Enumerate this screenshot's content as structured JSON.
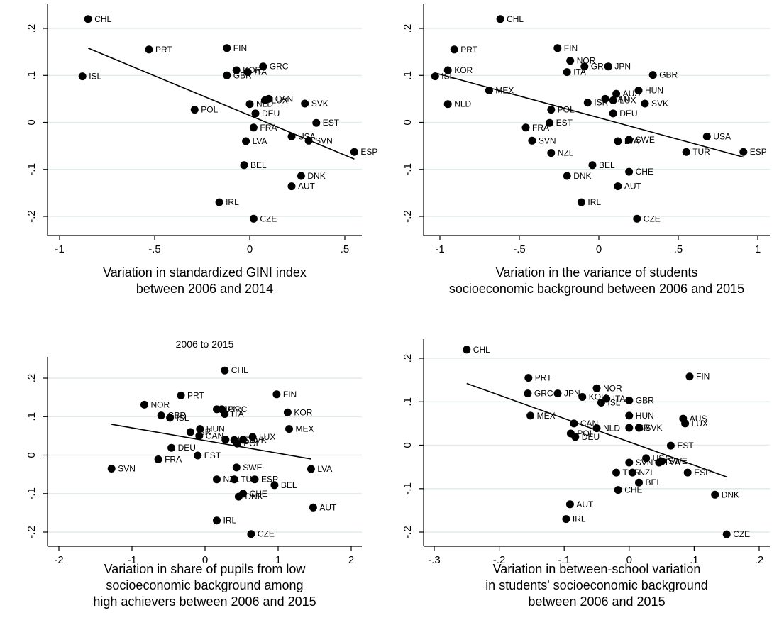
{
  "chart_data": [
    {
      "type": "scatter",
      "title": "",
      "xlabel": [
        "Variation in standardized GINI index",
        "between 2006 and 2014"
      ],
      "ylabel": "",
      "xlim": [
        -1.05,
        0.6
      ],
      "ylim": [
        -0.22,
        0.25
      ],
      "xticks": [
        -1,
        -0.5,
        0,
        0.5
      ],
      "xtick_labels": [
        "-1",
        "-.5",
        "0",
        ".5"
      ],
      "yticks": [
        -0.2,
        -0.1,
        0,
        0.1,
        0.2
      ],
      "ytick_labels": [
        "-.2",
        "-.1",
        "0",
        ".1",
        ".2"
      ],
      "grid": true,
      "fit_line": [
        [
          -0.85,
          0.158
        ],
        [
          0.55,
          -0.078
        ]
      ],
      "points": [
        {
          "label": "CHL",
          "x": -0.85,
          "y": 0.22
        },
        {
          "label": "PRT",
          "x": -0.53,
          "y": 0.155
        },
        {
          "label": "FIN",
          "x": -0.12,
          "y": 0.158
        },
        {
          "label": "ISL",
          "x": -0.88,
          "y": 0.098
        },
        {
          "label": "KOR",
          "x": -0.07,
          "y": 0.111
        },
        {
          "label": "GRC",
          "x": 0.07,
          "y": 0.119
        },
        {
          "label": "GBR",
          "x": -0.12,
          "y": 0.1
        },
        {
          "label": "ITA",
          "x": -0.01,
          "y": 0.107
        },
        {
          "label": "CAN",
          "x": 0.1,
          "y": 0.05
        },
        {
          "label": "LUX",
          "x": 0.08,
          "y": 0.047
        },
        {
          "label": "NLD",
          "x": 0.0,
          "y": 0.039
        },
        {
          "label": "SVK",
          "x": 0.29,
          "y": 0.04
        },
        {
          "label": "POL",
          "x": -0.29,
          "y": 0.027
        },
        {
          "label": "DEU",
          "x": 0.03,
          "y": 0.019
        },
        {
          "label": "EST",
          "x": 0.35,
          "y": -0.001
        },
        {
          "label": "FRA",
          "x": 0.02,
          "y": -0.011
        },
        {
          "label": "USA",
          "x": 0.22,
          "y": -0.03
        },
        {
          "label": "SVN",
          "x": 0.31,
          "y": -0.039
        },
        {
          "label": "LVA",
          "x": -0.02,
          "y": -0.04
        },
        {
          "label": "ESP",
          "x": 0.55,
          "y": -0.063
        },
        {
          "label": "BEL",
          "x": -0.03,
          "y": -0.091
        },
        {
          "label": "DNK",
          "x": 0.27,
          "y": -0.114
        },
        {
          "label": "AUT",
          "x": 0.22,
          "y": -0.136
        },
        {
          "label": "IRL",
          "x": -0.16,
          "y": -0.17
        },
        {
          "label": "CZE",
          "x": 0.02,
          "y": -0.205
        }
      ]
    },
    {
      "type": "scatter",
      "title": "",
      "xlabel": [
        "Variation in the variance of students",
        "socioeconomic background between 2006 and 2015"
      ],
      "ylabel": "",
      "xlim": [
        -1.08,
        1.05
      ],
      "ylim": [
        -0.22,
        0.25
      ],
      "xticks": [
        -1,
        -0.5,
        0,
        0.5,
        1
      ],
      "xtick_labels": [
        "-1",
        "-.5",
        "0",
        ".5",
        "1"
      ],
      "yticks": [
        -0.2,
        -0.1,
        0,
        0.1,
        0.2
      ],
      "ytick_labels": [
        "-.2",
        "-.1",
        "0",
        ".1",
        ".2"
      ],
      "grid": true,
      "fit_line": [
        [
          -1.03,
          0.105
        ],
        [
          0.91,
          -0.074
        ]
      ],
      "points": [
        {
          "label": "CHL",
          "x": -0.62,
          "y": 0.22
        },
        {
          "label": "PRT",
          "x": -0.91,
          "y": 0.155
        },
        {
          "label": "FIN",
          "x": -0.26,
          "y": 0.158
        },
        {
          "label": "NOR",
          "x": -0.18,
          "y": 0.131
        },
        {
          "label": "KOR",
          "x": -0.95,
          "y": 0.111
        },
        {
          "label": "GRC",
          "x": -0.09,
          "y": 0.119
        },
        {
          "label": "JPN",
          "x": 0.06,
          "y": 0.119
        },
        {
          "label": "ISL",
          "x": -1.03,
          "y": 0.098
        },
        {
          "label": "ITA",
          "x": -0.2,
          "y": 0.107
        },
        {
          "label": "GBR",
          "x": 0.34,
          "y": 0.101
        },
        {
          "label": "MEX",
          "x": -0.69,
          "y": 0.068
        },
        {
          "label": "HUN",
          "x": 0.25,
          "y": 0.068
        },
        {
          "label": "AUS",
          "x": 0.11,
          "y": 0.061
        },
        {
          "label": "CAN",
          "x": 0.04,
          "y": 0.05
        },
        {
          "label": "LUX",
          "x": 0.09,
          "y": 0.047
        },
        {
          "label": "ISR",
          "x": -0.07,
          "y": 0.042
        },
        {
          "label": "NLD",
          "x": -0.95,
          "y": 0.039
        },
        {
          "label": "SVK",
          "x": 0.29,
          "y": 0.04
        },
        {
          "label": "POL",
          "x": -0.3,
          "y": 0.027
        },
        {
          "label": "DEU",
          "x": 0.09,
          "y": 0.019
        },
        {
          "label": "EST",
          "x": -0.31,
          "y": -0.001
        },
        {
          "label": "FRA",
          "x": -0.46,
          "y": -0.011
        },
        {
          "label": "USA",
          "x": 0.68,
          "y": -0.03
        },
        {
          "label": "SVN",
          "x": -0.42,
          "y": -0.039
        },
        {
          "label": "SWE",
          "x": 0.19,
          "y": -0.037
        },
        {
          "label": "LVA",
          "x": 0.12,
          "y": -0.04
        },
        {
          "label": "TUR",
          "x": 0.55,
          "y": -0.063
        },
        {
          "label": "ESP",
          "x": 0.91,
          "y": -0.063
        },
        {
          "label": "NZL",
          "x": -0.3,
          "y": -0.065
        },
        {
          "label": "BEL",
          "x": -0.04,
          "y": -0.091
        },
        {
          "label": "CHE",
          "x": 0.19,
          "y": -0.105
        },
        {
          "label": "DNK",
          "x": -0.2,
          "y": -0.114
        },
        {
          "label": "AUT",
          "x": 0.12,
          "y": -0.136
        },
        {
          "label": "IRL",
          "x": -0.11,
          "y": -0.17
        },
        {
          "label": "CZE",
          "x": 0.24,
          "y": -0.205
        }
      ]
    },
    {
      "type": "scatter",
      "title": "2006 to 2015",
      "xlabel": [
        "Variation in share of pupils from low",
        "socioeconomic background among",
        "high achievers between 2006 and 2015"
      ],
      "ylabel": "",
      "xlim": [
        -2.1,
        2.1
      ],
      "ylim": [
        -0.22,
        0.25
      ],
      "xticks": [
        -2,
        -1,
        0,
        1,
        2
      ],
      "xtick_labels": [
        "-2",
        "-1",
        "0",
        "1",
        "2"
      ],
      "yticks": [
        -0.2,
        -0.1,
        0,
        0.1,
        0.2
      ],
      "ytick_labels": [
        "-.2",
        "-.1",
        "0",
        ".1",
        ".2"
      ],
      "grid": true,
      "fit_line": [
        [
          -1.28,
          0.08
        ],
        [
          1.45,
          -0.01
        ]
      ],
      "points": [
        {
          "label": "CHL",
          "x": 0.27,
          "y": 0.22
        },
        {
          "label": "PRT",
          "x": -0.33,
          "y": 0.155
        },
        {
          "label": "FIN",
          "x": 0.98,
          "y": 0.158
        },
        {
          "label": "NOR",
          "x": -0.83,
          "y": 0.131
        },
        {
          "label": "JPN",
          "x": 0.16,
          "y": 0.119
        },
        {
          "label": "GRC",
          "x": 0.23,
          "y": 0.119
        },
        {
          "label": "KOR",
          "x": 1.13,
          "y": 0.111
        },
        {
          "label": "ITA",
          "x": 0.27,
          "y": 0.107
        },
        {
          "label": "GBR",
          "x": -0.6,
          "y": 0.103
        },
        {
          "label": "ISL",
          "x": -0.48,
          "y": 0.097
        },
        {
          "label": "MEX",
          "x": 1.15,
          "y": 0.068
        },
        {
          "label": "HUN",
          "x": -0.07,
          "y": 0.068
        },
        {
          "label": "ISR",
          "x": -0.2,
          "y": 0.06
        },
        {
          "label": "CAN",
          "x": -0.08,
          "y": 0.05
        },
        {
          "label": "LUX",
          "x": 0.65,
          "y": 0.047
        },
        {
          "label": "NLD",
          "x": 0.4,
          "y": 0.039
        },
        {
          "label": "SVK",
          "x": 0.52,
          "y": 0.04
        },
        {
          "label": "AUS",
          "x": 0.28,
          "y": 0.04
        },
        {
          "label": "POL",
          "x": 0.44,
          "y": 0.03
        },
        {
          "label": "DEU",
          "x": -0.46,
          "y": 0.019
        },
        {
          "label": "EST",
          "x": -0.1,
          "y": -0.001
        },
        {
          "label": "FRA",
          "x": -0.64,
          "y": -0.011
        },
        {
          "label": "SVN",
          "x": -1.28,
          "y": -0.035
        },
        {
          "label": "SWE",
          "x": 0.43,
          "y": -0.032
        },
        {
          "label": "LVA",
          "x": 1.45,
          "y": -0.036
        },
        {
          "label": "NZL",
          "x": 0.16,
          "y": -0.063
        },
        {
          "label": "TUR",
          "x": 0.4,
          "y": -0.063
        },
        {
          "label": "ESP",
          "x": 0.68,
          "y": -0.063
        },
        {
          "label": "BEL",
          "x": 0.95,
          "y": -0.078
        },
        {
          "label": "CHE",
          "x": 0.52,
          "y": -0.1
        },
        {
          "label": "DNK",
          "x": 0.46,
          "y": -0.108
        },
        {
          "label": "AUT",
          "x": 1.48,
          "y": -0.136
        },
        {
          "label": "IRL",
          "x": 0.16,
          "y": -0.17
        },
        {
          "label": "CZE",
          "x": 0.63,
          "y": -0.205
        }
      ]
    },
    {
      "type": "scatter",
      "title": "",
      "xlabel": [
        "Variation in between-school variation",
        "in students' socioeconomic background",
        "between 2006 and 2015"
      ],
      "ylabel": "",
      "xlim": [
        -0.315,
        0.215
      ],
      "ylim": [
        -0.22,
        0.25
      ],
      "xticks": [
        -0.3,
        -0.2,
        -0.1,
        0,
        0.1,
        0.2
      ],
      "xtick_labels": [
        "-.3",
        "-.2",
        "-.1",
        "0",
        ".1",
        ".2"
      ],
      "yticks": [
        -0.2,
        -0.1,
        0,
        0.1,
        0.2
      ],
      "ytick_labels": [
        "-.2",
        "-.1",
        "0",
        ".1",
        ".2"
      ],
      "grid": true,
      "fit_line": [
        [
          -0.25,
          0.142
        ],
        [
          0.15,
          -0.073
        ]
      ],
      "points": [
        {
          "label": "CHL",
          "x": -0.25,
          "y": 0.22
        },
        {
          "label": "PRT",
          "x": -0.155,
          "y": 0.155
        },
        {
          "label": "FIN",
          "x": 0.093,
          "y": 0.158
        },
        {
          "label": "NOR",
          "x": -0.05,
          "y": 0.131
        },
        {
          "label": "GRC",
          "x": -0.156,
          "y": 0.119
        },
        {
          "label": "JPN",
          "x": -0.11,
          "y": 0.119
        },
        {
          "label": "KOR",
          "x": -0.072,
          "y": 0.111
        },
        {
          "label": "ITA",
          "x": -0.035,
          "y": 0.107
        },
        {
          "label": "ISL",
          "x": -0.043,
          "y": 0.098
        },
        {
          "label": "GBR",
          "x": 0.0,
          "y": 0.103
        },
        {
          "label": "MEX",
          "x": -0.152,
          "y": 0.068
        },
        {
          "label": "HUN",
          "x": 0.0,
          "y": 0.068
        },
        {
          "label": "AUS",
          "x": 0.083,
          "y": 0.061
        },
        {
          "label": "LUX",
          "x": 0.086,
          "y": 0.05
        },
        {
          "label": "CAN",
          "x": -0.085,
          "y": 0.05
        },
        {
          "label": "NLD",
          "x": -0.05,
          "y": 0.039
        },
        {
          "label": "ISR",
          "x": 0.0,
          "y": 0.04
        },
        {
          "label": "SVK",
          "x": 0.015,
          "y": 0.04
        },
        {
          "label": "POL",
          "x": -0.09,
          "y": 0.027
        },
        {
          "label": "DEU",
          "x": -0.083,
          "y": 0.019
        },
        {
          "label": "EST",
          "x": 0.064,
          "y": -0.001
        },
        {
          "label": "SVN",
          "x": 0.0,
          "y": -0.04
        },
        {
          "label": "USA",
          "x": 0.026,
          "y": -0.03
        },
        {
          "label": "SWE",
          "x": 0.05,
          "y": -0.037
        },
        {
          "label": "LVA",
          "x": 0.046,
          "y": -0.04
        },
        {
          "label": "TUR",
          "x": -0.02,
          "y": -0.063
        },
        {
          "label": "NZL",
          "x": 0.005,
          "y": -0.063
        },
        {
          "label": "ESP",
          "x": 0.09,
          "y": -0.063
        },
        {
          "label": "BEL",
          "x": 0.015,
          "y": -0.086
        },
        {
          "label": "CHE",
          "x": -0.017,
          "y": -0.103
        },
        {
          "label": "DNK",
          "x": 0.132,
          "y": -0.114
        },
        {
          "label": "AUT",
          "x": -0.091,
          "y": -0.136
        },
        {
          "label": "IRL",
          "x": -0.097,
          "y": -0.17
        },
        {
          "label": "CZE",
          "x": 0.15,
          "y": -0.205
        }
      ]
    }
  ]
}
